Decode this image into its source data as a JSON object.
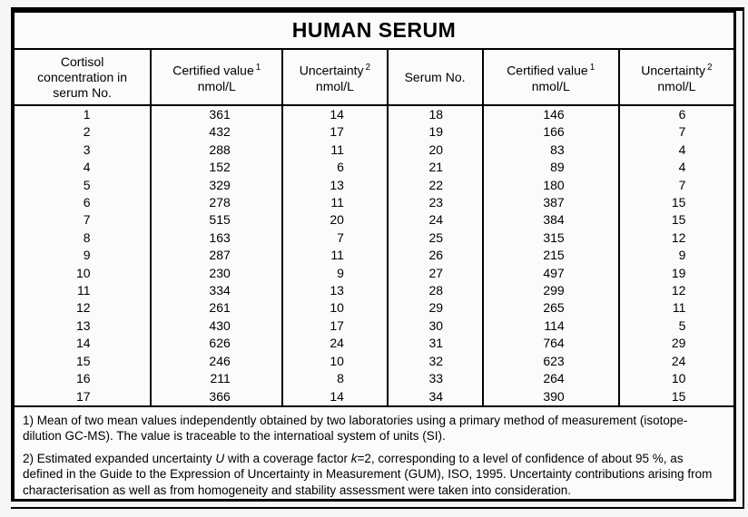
{
  "title": "HUMAN SERUM",
  "table": {
    "headers": {
      "col1": {
        "line1": "Cortisol",
        "line2": "concentration in",
        "line3": "serum No."
      },
      "col2": {
        "label": "Certified value",
        "sup": "1",
        "unit": "nmol/L"
      },
      "col3": {
        "label": "Uncertainty",
        "sup": "2",
        "unit": "nmol/L"
      },
      "col4": {
        "label": "Serum No."
      },
      "col5": {
        "label": "Certified value",
        "sup": "1",
        "unit": "nmol/L"
      },
      "col6": {
        "label": "Uncertainty",
        "sup": "2",
        "unit": "nmol/L"
      }
    },
    "rows": [
      {
        "serum_no": "1",
        "certified_value": "361",
        "uncertainty": "14",
        "serum_no_2": "18",
        "certified_value_2": "146",
        "uncertainty_2": "6"
      },
      {
        "serum_no": "2",
        "certified_value": "432",
        "uncertainty": "17",
        "serum_no_2": "19",
        "certified_value_2": "166",
        "uncertainty_2": "7"
      },
      {
        "serum_no": "3",
        "certified_value": "288",
        "uncertainty": "11",
        "serum_no_2": "20",
        "certified_value_2": "83",
        "uncertainty_2": "4"
      },
      {
        "serum_no": "4",
        "certified_value": "152",
        "uncertainty": "6",
        "serum_no_2": "21",
        "certified_value_2": "89",
        "uncertainty_2": "4"
      },
      {
        "serum_no": "5",
        "certified_value": "329",
        "uncertainty": "13",
        "serum_no_2": "22",
        "certified_value_2": "180",
        "uncertainty_2": "7"
      },
      {
        "serum_no": "6",
        "certified_value": "278",
        "uncertainty": "11",
        "serum_no_2": "23",
        "certified_value_2": "387",
        "uncertainty_2": "15"
      },
      {
        "serum_no": "7",
        "certified_value": "515",
        "uncertainty": "20",
        "serum_no_2": "24",
        "certified_value_2": "384",
        "uncertainty_2": "15"
      },
      {
        "serum_no": "8",
        "certified_value": "163",
        "uncertainty": "7",
        "serum_no_2": "25",
        "certified_value_2": "315",
        "uncertainty_2": "12"
      },
      {
        "serum_no": "9",
        "certified_value": "287",
        "uncertainty": "11",
        "serum_no_2": "26",
        "certified_value_2": "215",
        "uncertainty_2": "9"
      },
      {
        "serum_no": "10",
        "certified_value": "230",
        "uncertainty": "9",
        "serum_no_2": "27",
        "certified_value_2": "497",
        "uncertainty_2": "19"
      },
      {
        "serum_no": "11",
        "certified_value": "334",
        "uncertainty": "13",
        "serum_no_2": "28",
        "certified_value_2": "299",
        "uncertainty_2": "12"
      },
      {
        "serum_no": "12",
        "certified_value": "261",
        "uncertainty": "10",
        "serum_no_2": "29",
        "certified_value_2": "265",
        "uncertainty_2": "11"
      },
      {
        "serum_no": "13",
        "certified_value": "430",
        "uncertainty": "17",
        "serum_no_2": "30",
        "certified_value_2": "114",
        "uncertainty_2": "5"
      },
      {
        "serum_no": "14",
        "certified_value": "626",
        "uncertainty": "24",
        "serum_no_2": "31",
        "certified_value_2": "764",
        "uncertainty_2": "29"
      },
      {
        "serum_no": "15",
        "certified_value": "246",
        "uncertainty": "10",
        "serum_no_2": "32",
        "certified_value_2": "623",
        "uncertainty_2": "24"
      },
      {
        "serum_no": "16",
        "certified_value": "211",
        "uncertainty": "8",
        "serum_no_2": "33",
        "certified_value_2": "264",
        "uncertainty_2": "10"
      },
      {
        "serum_no": "17",
        "certified_value": "366",
        "uncertainty": "14",
        "serum_no_2": "34",
        "certified_value_2": "390",
        "uncertainty_2": "15"
      }
    ]
  },
  "footnotes": {
    "note1": "1) Mean of two mean values independently obtained by two laboratories using a primary method of measurement (isotope-dilution GC-MS). The value is traceable to the internatioal system of units (SI).",
    "note2": {
      "part1": "2) Estimated expanded uncertainty ",
      "italic1": "U",
      "part2": " with a coverage factor ",
      "italic2": "k",
      "part3": "=2, corresponding to a level of confidence of about 95 %, as defined in the Guide to the Expression of Uncertainty in Measurement (GUM), ISO, 1995. Uncertainty contributions arising from characterisation as well as from homogeneity and stability assessment were taken into consideration."
    }
  }
}
